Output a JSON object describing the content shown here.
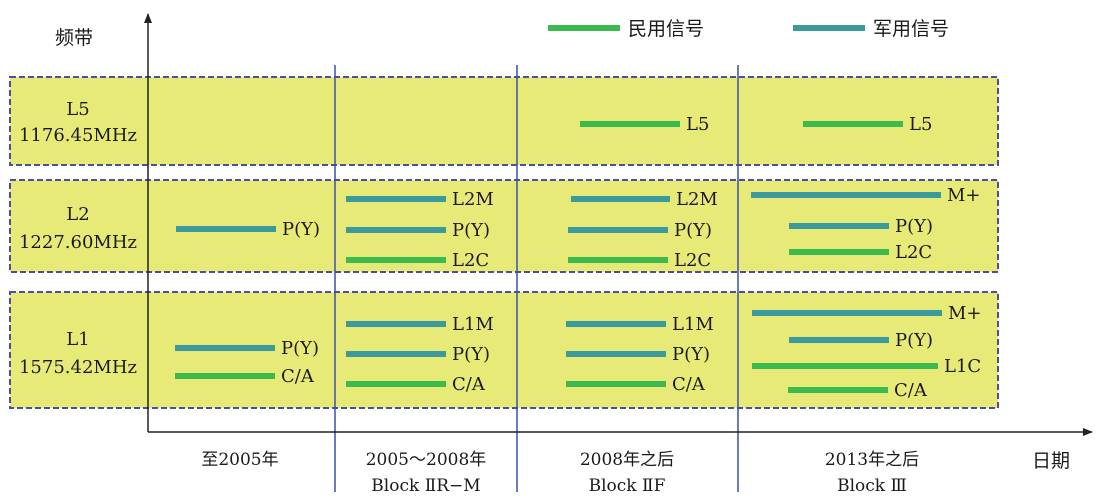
{
  "colors": {
    "civil": "#3dba4e",
    "military": "#3a9a9c",
    "band_fill": "#e8ea78",
    "band_border": "#4a4fa0",
    "divider": "#3b4fae",
    "axis": "#222222"
  },
  "legend": {
    "civil": "民用信号",
    "military": "军用信号"
  },
  "axes": {
    "y_label": "频带",
    "x_label": "日期"
  },
  "bands": [
    {
      "name": "L5",
      "freq": "1176.45MHz"
    },
    {
      "name": "L2",
      "freq": "1227.60MHz"
    },
    {
      "name": "L1",
      "freq": "1575.42MHz"
    }
  ],
  "eras": [
    {
      "line1": "至2005年",
      "line2": ""
    },
    {
      "line1": "2005～2008年",
      "line2": "Block ⅡR−M"
    },
    {
      "line1": "2008年之后",
      "line2": "Block ⅡF"
    },
    {
      "line1": "2013年之后",
      "line2": "Block Ⅲ"
    }
  ],
  "signals": [
    {
      "band": 1,
      "era": 0,
      "label": "P(Y)",
      "type": "military"
    },
    {
      "band": 2,
      "era": 0,
      "label": "P(Y)",
      "type": "military"
    },
    {
      "band": 2,
      "era": 0,
      "label": "C/A",
      "type": "civil"
    },
    {
      "band": 1,
      "era": 1,
      "label": "L2M",
      "type": "military"
    },
    {
      "band": 1,
      "era": 1,
      "label": "P(Y)",
      "type": "military"
    },
    {
      "band": 1,
      "era": 1,
      "label": "L2C",
      "type": "civil"
    },
    {
      "band": 2,
      "era": 1,
      "label": "L1M",
      "type": "military"
    },
    {
      "band": 2,
      "era": 1,
      "label": "P(Y)",
      "type": "military"
    },
    {
      "band": 2,
      "era": 1,
      "label": "C/A",
      "type": "civil"
    },
    {
      "band": 0,
      "era": 2,
      "label": "L5",
      "type": "civil"
    },
    {
      "band": 1,
      "era": 2,
      "label": "L2M",
      "type": "military"
    },
    {
      "band": 1,
      "era": 2,
      "label": "P(Y)",
      "type": "military"
    },
    {
      "band": 1,
      "era": 2,
      "label": "L2C",
      "type": "civil"
    },
    {
      "band": 2,
      "era": 2,
      "label": "L1M",
      "type": "military"
    },
    {
      "band": 2,
      "era": 2,
      "label": "P(Y)",
      "type": "military"
    },
    {
      "band": 2,
      "era": 2,
      "label": "C/A",
      "type": "civil"
    },
    {
      "band": 0,
      "era": 3,
      "label": "L5",
      "type": "civil"
    },
    {
      "band": 1,
      "era": 3,
      "label": "M+",
      "type": "military"
    },
    {
      "band": 1,
      "era": 3,
      "label": "P(Y)",
      "type": "military"
    },
    {
      "band": 1,
      "era": 3,
      "label": "L2C",
      "type": "civil"
    },
    {
      "band": 2,
      "era": 3,
      "label": "M+",
      "type": "military"
    },
    {
      "band": 2,
      "era": 3,
      "label": "P(Y)",
      "type": "military"
    },
    {
      "band": 2,
      "era": 3,
      "label": "L1C",
      "type": "civil"
    },
    {
      "band": 2,
      "era": 3,
      "label": "C/A",
      "type": "civil"
    }
  ]
}
